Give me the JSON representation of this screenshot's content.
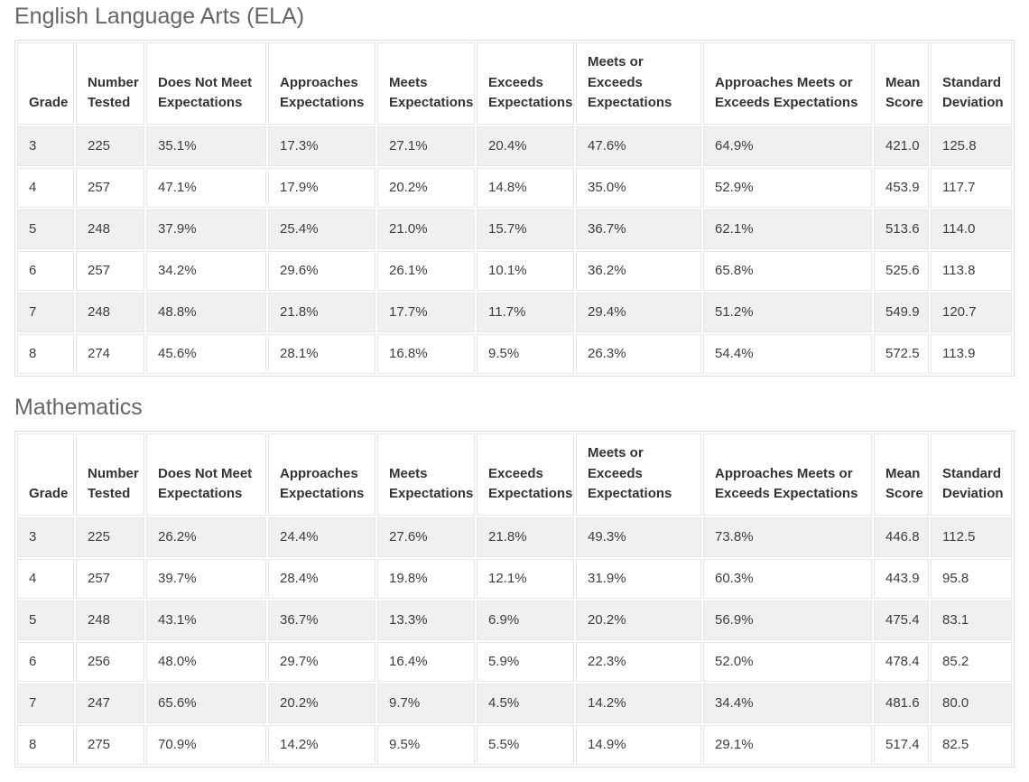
{
  "colors": {
    "title_text": "#666666",
    "header_text": "#333333",
    "body_text": "#3d3d3d",
    "row_stripe": "#f0f0f0",
    "table_border": "#dddddd"
  },
  "sections": [
    {
      "title": "English Language Arts (ELA)",
      "columns": [
        "Grade",
        "Number Tested",
        "Does Not Meet Expectations",
        "Approaches Expectations",
        "Meets Expectations",
        "Exceeds Expectations",
        "Meets or Exceeds Expectations",
        "Approaches Meets or Exceeds Expectations",
        "Mean Score",
        "Standard Deviation"
      ],
      "rows": [
        [
          "3",
          "225",
          "35.1%",
          "17.3%",
          "27.1%",
          "20.4%",
          "47.6%",
          "64.9%",
          "421.0",
          "125.8"
        ],
        [
          "4",
          "257",
          "47.1%",
          "17.9%",
          "20.2%",
          "14.8%",
          "35.0%",
          "52.9%",
          "453.9",
          "117.7"
        ],
        [
          "5",
          "248",
          "37.9%",
          "25.4%",
          "21.0%",
          "15.7%",
          "36.7%",
          "62.1%",
          "513.6",
          "114.0"
        ],
        [
          "6",
          "257",
          "34.2%",
          "29.6%",
          "26.1%",
          "10.1%",
          "36.2%",
          "65.8%",
          "525.6",
          "113.8"
        ],
        [
          "7",
          "248",
          "48.8%",
          "21.8%",
          "17.7%",
          "11.7%",
          "29.4%",
          "51.2%",
          "549.9",
          "120.7"
        ],
        [
          "8",
          "274",
          "45.6%",
          "28.1%",
          "16.8%",
          "9.5%",
          "26.3%",
          "54.4%",
          "572.5",
          "113.9"
        ]
      ]
    },
    {
      "title": "Mathematics",
      "columns": [
        "Grade",
        "Number Tested",
        "Does Not Meet Expectations",
        "Approaches Expectations",
        "Meets Expectations",
        "Exceeds Expectations",
        "Meets or Exceeds Expectations",
        "Approaches Meets or Exceeds Expectations",
        "Mean Score",
        "Standard Deviation"
      ],
      "rows": [
        [
          "3",
          "225",
          "26.2%",
          "24.4%",
          "27.6%",
          "21.8%",
          "49.3%",
          "73.8%",
          "446.8",
          "112.5"
        ],
        [
          "4",
          "257",
          "39.7%",
          "28.4%",
          "19.8%",
          "12.1%",
          "31.9%",
          "60.3%",
          "443.9",
          "95.8"
        ],
        [
          "5",
          "248",
          "43.1%",
          "36.7%",
          "13.3%",
          "6.9%",
          "20.2%",
          "56.9%",
          "475.4",
          "83.1"
        ],
        [
          "6",
          "256",
          "48.0%",
          "29.7%",
          "16.4%",
          "5.9%",
          "22.3%",
          "52.0%",
          "478.4",
          "85.2"
        ],
        [
          "7",
          "247",
          "65.6%",
          "20.2%",
          "9.7%",
          "4.5%",
          "14.2%",
          "34.4%",
          "481.6",
          "80.0"
        ],
        [
          "8",
          "275",
          "70.9%",
          "14.2%",
          "9.5%",
          "5.5%",
          "14.9%",
          "29.1%",
          "517.4",
          "82.5"
        ]
      ]
    }
  ]
}
